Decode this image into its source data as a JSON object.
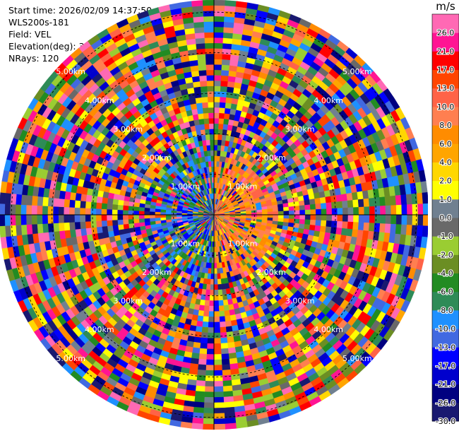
{
  "info": {
    "start_time": "Start time: 2026/02/09 14:37:50",
    "instrument": "WLS200s-181",
    "field": "Field: VEL",
    "elevation": "Elevation(deg): 35.00",
    "nrays": "NRays: 120"
  },
  "chart_data": {
    "type": "heatmap",
    "projection": "polar-ppi",
    "field": "VEL",
    "n_rays": 120,
    "range_ring_labels": [
      "1.00km",
      "2.00km",
      "3.00km",
      "4.00km",
      "5.00km"
    ],
    "colorbar": {
      "unit": "m/s",
      "bounds": [
        -30.0,
        -26.0,
        -21.0,
        -17.0,
        -13.0,
        -10.0,
        -8.0,
        -6.0,
        -4.0,
        -2.0,
        -1.0,
        0.0,
        1.0,
        2.0,
        4.0,
        6.0,
        8.0,
        10.0,
        13.0,
        17.0,
        21.0,
        26.0
      ],
      "tick_labels": [
        "-30.0",
        "-26.0",
        "-21.0",
        "-17.0",
        "-13.0",
        "-10.0",
        "-8.0",
        "-6.0",
        "-4.0",
        "-2.0",
        "-1.0",
        "0.0",
        "1.0",
        "2.0",
        "4.0",
        "6.0",
        "8.0",
        "10.0",
        "13.0",
        "17.0",
        "21.0",
        "26.0"
      ],
      "colors": [
        "#191970",
        "#000080",
        "#0000cd",
        "#0000ff",
        "#4169e1",
        "#1e90ff",
        "#2e8b57",
        "#228b22",
        "#6b8e23",
        "#9acd32",
        "#696969",
        "#708090",
        "#ffff00",
        "#ffd700",
        "#ffa500",
        "#ff8c00",
        "#ff7f50",
        "#ff6347",
        "#ff4500",
        "#ff0000",
        "#ff1493",
        "#ff69b4"
      ]
    }
  }
}
